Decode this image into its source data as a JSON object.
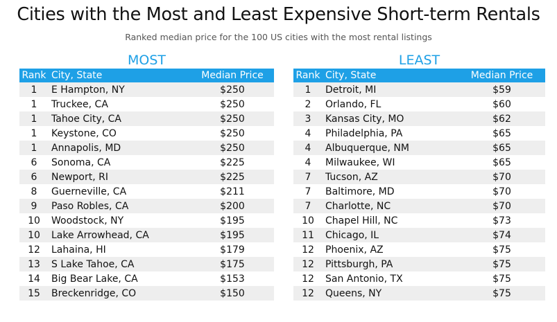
{
  "title": "Cities with the Most and Least Expensive Short-term Rentals",
  "subtitle": "Ranked median price for the 100 US cities with the most rental listings",
  "colors": {
    "accent": "#1ea0e6",
    "stripe": "#eeeeee"
  },
  "chart_data": [
    {
      "type": "table",
      "title": "MOST",
      "columns": [
        "Rank",
        "City, State",
        "Median Price"
      ],
      "rows": [
        [
          "1",
          "E Hampton, NY",
          "$250"
        ],
        [
          "1",
          "Truckee, CA",
          "$250"
        ],
        [
          "1",
          "Tahoe City, CA",
          "$250"
        ],
        [
          "1",
          "Keystone, CO",
          "$250"
        ],
        [
          "1",
          "Annapolis, MD",
          "$250"
        ],
        [
          "6",
          "Sonoma, CA",
          "$225"
        ],
        [
          "6",
          "Newport, RI",
          "$225"
        ],
        [
          "8",
          "Guerneville, CA",
          "$211"
        ],
        [
          "9",
          "Paso Robles, CA",
          "$200"
        ],
        [
          "10",
          "Woodstock, NY",
          "$195"
        ],
        [
          "10",
          "Lake Arrowhead, CA",
          "$195"
        ],
        [
          "12",
          "Lahaina, HI",
          "$179"
        ],
        [
          "13",
          "S Lake Tahoe, CA",
          "$175"
        ],
        [
          "14",
          "Big Bear Lake, CA",
          "$153"
        ],
        [
          "15",
          "Breckenridge, CO",
          "$150"
        ]
      ]
    },
    {
      "type": "table",
      "title": "LEAST",
      "columns": [
        "Rank",
        "City, State",
        "Median Price"
      ],
      "rows": [
        [
          "1",
          "Detroit, MI",
          "$59"
        ],
        [
          "2",
          "Orlando, FL",
          "$60"
        ],
        [
          "3",
          "Kansas City, MO",
          "$62"
        ],
        [
          "4",
          "Philadelphia, PA",
          "$65"
        ],
        [
          "4",
          "Albuquerque, NM",
          "$65"
        ],
        [
          "4",
          "Milwaukee, WI",
          "$65"
        ],
        [
          "7",
          "Tucson, AZ",
          "$70"
        ],
        [
          "7",
          "Baltimore, MD",
          "$70"
        ],
        [
          "7",
          "Charlotte, NC",
          "$70"
        ],
        [
          "10",
          "Chapel Hill, NC",
          "$73"
        ],
        [
          "11",
          "Chicago, IL",
          "$74"
        ],
        [
          "12",
          "Phoenix, AZ",
          "$75"
        ],
        [
          "12",
          "Pittsburgh, PA",
          "$75"
        ],
        [
          "12",
          "San Antonio, TX",
          "$75"
        ],
        [
          "12",
          "Queens, NY",
          "$75"
        ]
      ]
    }
  ]
}
